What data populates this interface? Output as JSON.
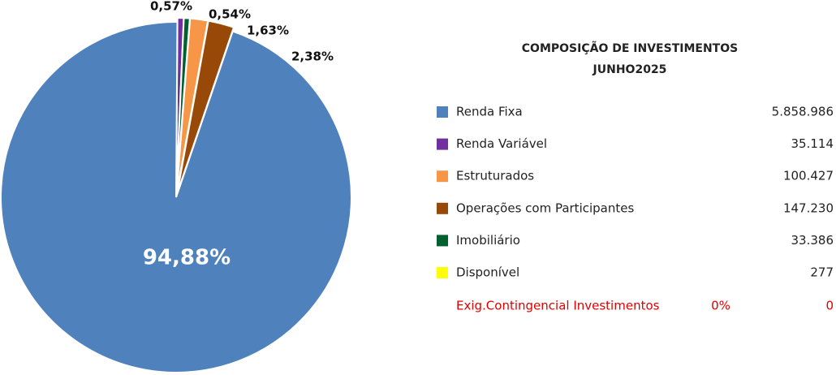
{
  "chart_data": {
    "type": "pie",
    "title": "COMPOSIÇÃO DE INVESTIMENTOS",
    "subtitle": "JUNHO2025",
    "categories": [
      "Renda Fixa",
      "Renda Variável",
      "Estruturados",
      "Operações com Participantes",
      "Imobiliário",
      "Disponível"
    ],
    "values": [
      94.88,
      0.57,
      1.63,
      2.38,
      0.54,
      0.0045
    ],
    "value_labels": [
      "94,88%",
      "0,57%",
      "1,63%",
      "2,38%",
      "0,54%",
      null
    ],
    "colors": [
      "#4f81bd",
      "#7030a0",
      "#f79646",
      "#984807",
      "#00612e",
      "#ffff00"
    ],
    "amounts": [
      "5.858.986",
      "35.114",
      "100.427",
      "147.230",
      "33.386",
      "277"
    ],
    "extra_row": {
      "label": "Exig.Contingencial Investimentos",
      "percent": "0%",
      "amount": "0",
      "color": "#e00000"
    }
  }
}
